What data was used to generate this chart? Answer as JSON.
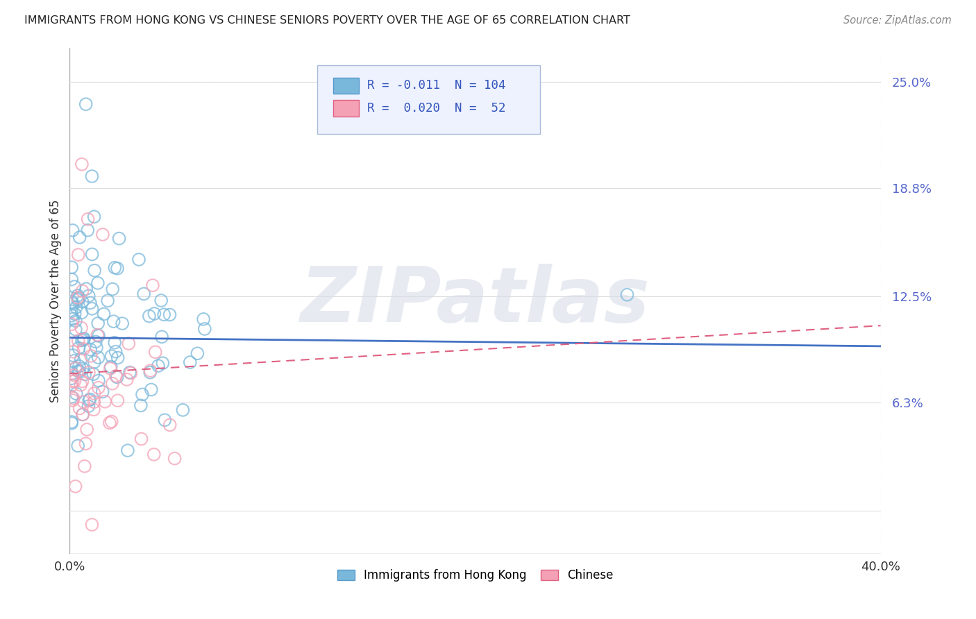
{
  "title": "IMMIGRANTS FROM HONG KONG VS CHINESE SENIORS POVERTY OVER THE AGE OF 65 CORRELATION CHART",
  "source": "Source: ZipAtlas.com",
  "ylabel": "Seniors Poverty Over the Age of 65",
  "xlim": [
    0.0,
    0.4
  ],
  "ylim": [
    -0.025,
    0.27
  ],
  "ytick_positions": [
    0.0,
    0.063,
    0.125,
    0.188,
    0.25
  ],
  "ytick_labels": [
    "",
    "6.3%",
    "12.5%",
    "18.8%",
    "25.0%"
  ],
  "xtick_positions": [
    0.0,
    0.4
  ],
  "xtick_labels": [
    "0.0%",
    "40.0%"
  ],
  "series1_name": "Immigrants from Hong Kong",
  "series1_color": "#7ab8db",
  "series1_edge": "#5599cc",
  "series1_R": -0.011,
  "series1_N": 104,
  "series1_trend_color": "#4472c4",
  "series2_name": "Chinese",
  "series2_color": "#f4a0b5",
  "series2_edge": "#e06080",
  "series2_R": 0.02,
  "series2_N": 52,
  "series2_trend_color": "#e06080",
  "watermark": "ZIPatlas",
  "background_color": "#ffffff",
  "grid_color": "#dddddd",
  "legend_facecolor": "#eef2ff",
  "legend_edgecolor": "#aabbdd",
  "title_color": "#222222",
  "source_color": "#888888",
  "ytick_color": "#5566cc",
  "trend1_y_start": 0.101,
  "trend1_y_end": 0.096,
  "trend2_y_start": 0.08,
  "trend2_y_end": 0.108
}
